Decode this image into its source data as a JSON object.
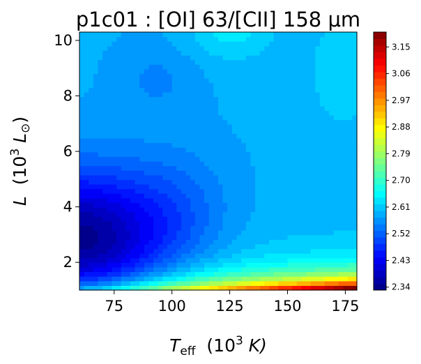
{
  "chart_data": {
    "type": "heatmap",
    "title": "p1c01 : [OI] 63/[CII] 158 μm",
    "xlabel": {
      "main": "T",
      "sub": "eff",
      "rest": "  (10",
      "sup": "3",
      "tail": " K)"
    },
    "ylabel": {
      "main": "L",
      "rest": "  (10",
      "sup": "3",
      "tail": " L",
      "sub": "⊙",
      "close": ")"
    },
    "x_range": [
      60,
      180
    ],
    "y_range": [
      1,
      10.3
    ],
    "x_ticks": [
      {
        "value": 75,
        "label": "75"
      },
      {
        "value": 100,
        "label": "100"
      },
      {
        "value": 125,
        "label": "125"
      },
      {
        "value": 150,
        "label": "150"
      },
      {
        "value": 175,
        "label": "175"
      }
    ],
    "y_ticks": [
      {
        "value": 2,
        "label": "2"
      },
      {
        "value": 4,
        "label": "4"
      },
      {
        "value": 6,
        "label": "6"
      },
      {
        "value": 8,
        "label": "8"
      },
      {
        "value": 10,
        "label": "10"
      }
    ],
    "colorbar": {
      "colormap": "jet",
      "min": 2.33,
      "max": 3.2,
      "ticks": [
        {
          "value": 2.34,
          "label": "2.34"
        },
        {
          "value": 2.43,
          "label": "2.43"
        },
        {
          "value": 2.52,
          "label": "2.52"
        },
        {
          "value": 2.61,
          "label": "2.61"
        },
        {
          "value": 2.7,
          "label": "2.70"
        },
        {
          "value": 2.79,
          "label": "2.79"
        },
        {
          "value": 2.88,
          "label": "2.88"
        },
        {
          "value": 2.97,
          "label": "2.97"
        },
        {
          "value": 3.06,
          "label": "3.06"
        },
        {
          "value": 3.15,
          "label": "3.15"
        }
      ]
    },
    "grid": false
  }
}
